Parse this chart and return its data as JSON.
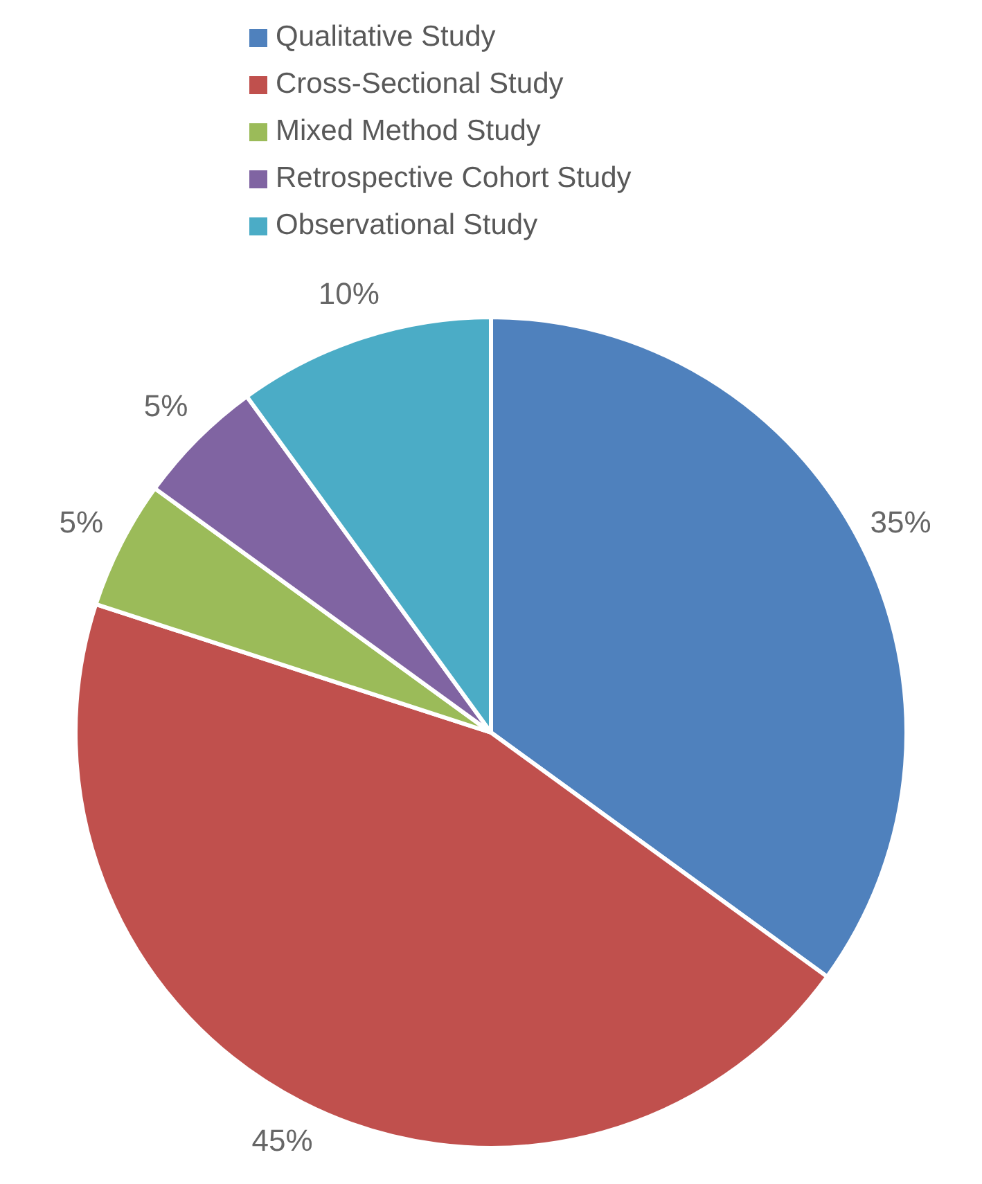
{
  "chart_data": {
    "type": "pie",
    "categories": [
      "Qualitative Study",
      "Cross-Sectional Study",
      "Mixed Method Study",
      "Retrospective Cohort Study",
      "Observational Study"
    ],
    "values": [
      35,
      45,
      5,
      5,
      10
    ],
    "colors": [
      "#4f81bd",
      "#c0504d",
      "#9bbb59",
      "#8064a2",
      "#4bacc6"
    ],
    "value_labels": [
      "35%",
      "45%",
      "5%",
      "5%",
      "10%"
    ],
    "legend": "top"
  }
}
